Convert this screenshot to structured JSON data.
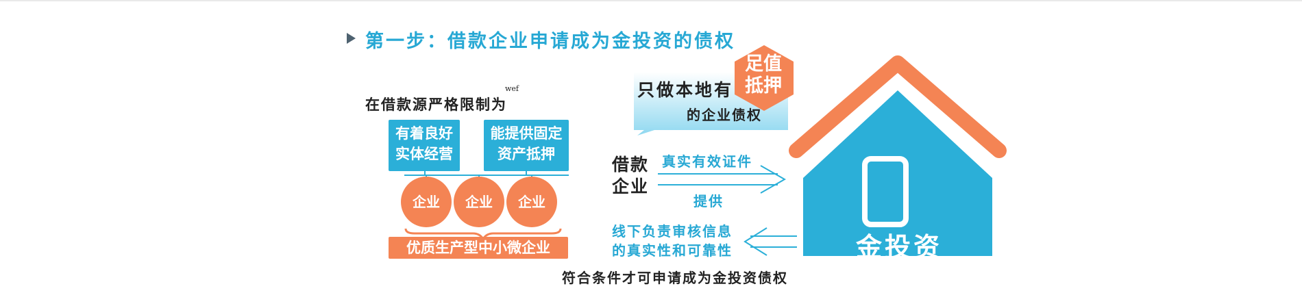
{
  "step": {
    "title": "第一步：借款企业申请成为金投资的债权"
  },
  "left": {
    "intro": "在借款源严格限制为",
    "note": "wef",
    "box1": {
      "line1": "有着良好",
      "line2": "实体经营"
    },
    "box2": {
      "line1": "能提供固定",
      "line2": "资产抵押"
    },
    "circles": [
      "企业",
      "企业",
      "企业"
    ],
    "bottom_label": "优质生产型中小微企业"
  },
  "bubble": {
    "line1": "只做本地有",
    "line2": "的企业债权",
    "hex": {
      "line1": "足值",
      "line2": "抵押"
    }
  },
  "flow": {
    "borrower": {
      "line1": "借款",
      "line2": "企业"
    },
    "arrow1_top": "真实有效证件",
    "arrow1_bottom": "提供",
    "arrow2_line1": "线下负责审核信息",
    "arrow2_line2": "的真实性和可靠性"
  },
  "house": {
    "label": "金投资"
  },
  "footer": "符合条件才可申请成为金投资债权",
  "colors": {
    "blue": "#2bafd8",
    "orange": "#f48454",
    "dark": "#222222"
  }
}
